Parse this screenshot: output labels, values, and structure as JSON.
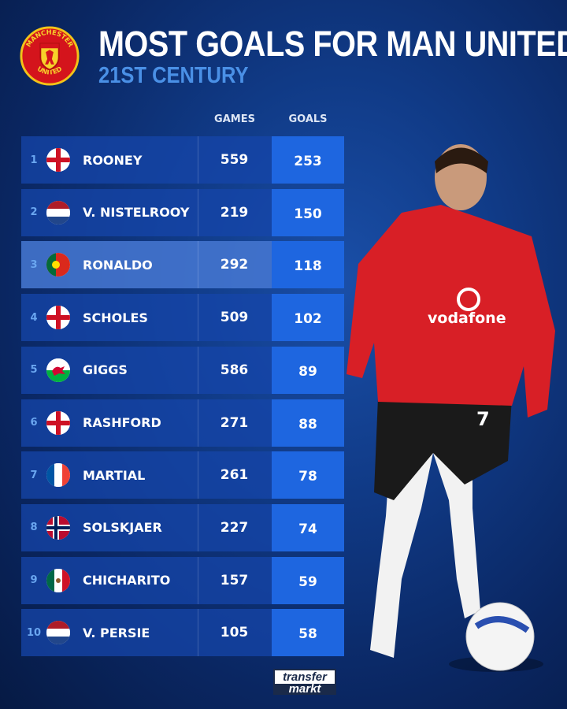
{
  "header": {
    "title": "MOST GOALS FOR MAN UNITED",
    "subtitle": "21ST CENTURY",
    "crest_text_top": "MANCHESTER",
    "crest_text_bottom": "UNITED"
  },
  "columns": {
    "games": "GAMES",
    "goals": "GOALS"
  },
  "highlight_rank": 3,
  "rows": [
    {
      "rank": "1",
      "flag": "england",
      "name": "ROONEY",
      "games": "559",
      "goals": "253"
    },
    {
      "rank": "2",
      "flag": "netherlands",
      "name": "V. NISTELROOY",
      "games": "219",
      "goals": "150"
    },
    {
      "rank": "3",
      "flag": "portugal",
      "name": "RONALDO",
      "games": "292",
      "goals": "118"
    },
    {
      "rank": "4",
      "flag": "england",
      "name": "SCHOLES",
      "games": "509",
      "goals": "102"
    },
    {
      "rank": "5",
      "flag": "wales",
      "name": "GIGGS",
      "games": "586",
      "goals": "89"
    },
    {
      "rank": "6",
      "flag": "england",
      "name": "RASHFORD",
      "games": "271",
      "goals": "88"
    },
    {
      "rank": "7",
      "flag": "france",
      "name": "MARTIAL",
      "games": "261",
      "goals": "78"
    },
    {
      "rank": "8",
      "flag": "norway",
      "name": "SOLSKJAER",
      "games": "227",
      "goals": "74"
    },
    {
      "rank": "9",
      "flag": "mexico",
      "name": "CHICHARITO",
      "games": "157",
      "goals": "59"
    },
    {
      "rank": "10",
      "flag": "netherlands",
      "name": "V. PERSIE",
      "games": "105",
      "goals": "58"
    }
  ],
  "player_image": {
    "shirt_sponsor": "vodafone",
    "shirt_number": "7"
  },
  "footer": {
    "logo_line1": "transfer",
    "logo_line2": "markt"
  },
  "colors": {
    "goals_column": "#1e66e0",
    "subtitle": "#4a90e6",
    "rank": "#6aa6f0"
  }
}
